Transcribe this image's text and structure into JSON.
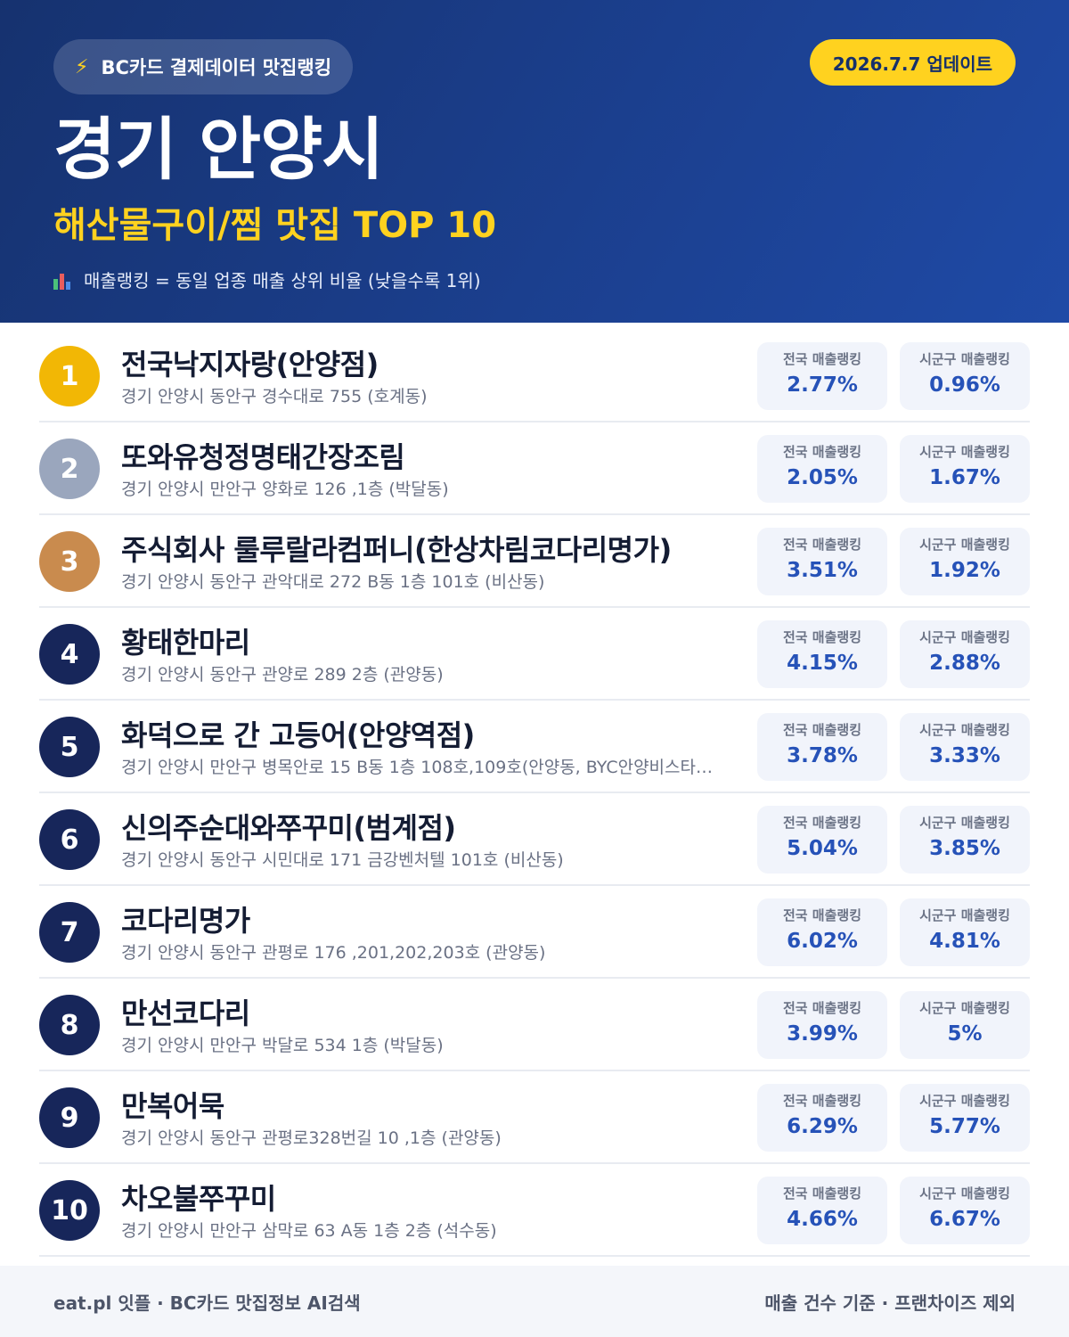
{
  "header": {
    "chip_icon": "lightning-icon",
    "chip_label": "BC카드 결제데이터 맛집랭킹",
    "update_label": "2026.7.7 업데이트",
    "title": "경기 안양시",
    "subtitle": "해산물구이/찜 맛집 TOP 10",
    "note_icon": "bar-chart-icon",
    "note": "매출랭킹 = 동일 업종 매출 상위 비율 (낮을수록 1위)"
  },
  "colors": {
    "gold": "#f2b705",
    "silver": "#9aa6bd",
    "bronze": "#c98b4e",
    "navy": "#17265a",
    "accent_yellow": "#ffd21f",
    "value_blue": "#2652b8"
  },
  "labels": {
    "national": "전국 매출랭킹",
    "local": "시군구 매출랭킹"
  },
  "items": [
    {
      "rank": "1",
      "name": "전국낙지자랑(안양점)",
      "address": "경기 안양시 동안구 경수대로 755 (호계동)",
      "national": "2.77%",
      "local": "0.96%"
    },
    {
      "rank": "2",
      "name": "또와유청정명태간장조림",
      "address": "경기 안양시 만안구 양화로 126 ,1층 (박달동)",
      "national": "2.05%",
      "local": "1.67%"
    },
    {
      "rank": "3",
      "name": "주식회사 룰루랄라컴퍼니(한상차림코다리명가)",
      "address": "경기 안양시 동안구 관악대로 272 B동 1층 101호 (비산동)",
      "national": "3.51%",
      "local": "1.92%"
    },
    {
      "rank": "4",
      "name": "황태한마리",
      "address": "경기 안양시 동안구 관양로 289 2층 (관양동)",
      "national": "4.15%",
      "local": "2.88%"
    },
    {
      "rank": "5",
      "name": "화덕으로 간 고등어(안양역점)",
      "address": "경기 안양시 만안구 병목안로 15 B동 1층 108호,109호(안양동, BYC안양비스타…",
      "national": "3.78%",
      "local": "3.33%"
    },
    {
      "rank": "6",
      "name": "신의주순대와쭈꾸미(범계점)",
      "address": "경기 안양시 동안구 시민대로 171 금강벤처텔 101호 (비산동)",
      "national": "5.04%",
      "local": "3.85%"
    },
    {
      "rank": "7",
      "name": "코다리명가",
      "address": "경기 안양시 동안구 관평로 176 ,201,202,203호 (관양동)",
      "national": "6.02%",
      "local": "4.81%"
    },
    {
      "rank": "8",
      "name": "만선코다리",
      "address": "경기 안양시 만안구 박달로 534 1층 (박달동)",
      "national": "3.99%",
      "local": "5%"
    },
    {
      "rank": "9",
      "name": "만복어묵",
      "address": "경기 안양시 동안구 관평로328번길 10 ,1층 (관양동)",
      "national": "6.29%",
      "local": "5.77%"
    },
    {
      "rank": "10",
      "name": "차오불쭈꾸미",
      "address": "경기 안양시 만안구 삼막로 63 A동 1층 2층 (석수동)",
      "national": "4.66%",
      "local": "6.67%"
    }
  ],
  "footer": {
    "left": "eat.pl 잇플 · BC카드 맛집정보 AI검색",
    "right": "매출 건수 기준 · 프랜차이즈 제외"
  }
}
